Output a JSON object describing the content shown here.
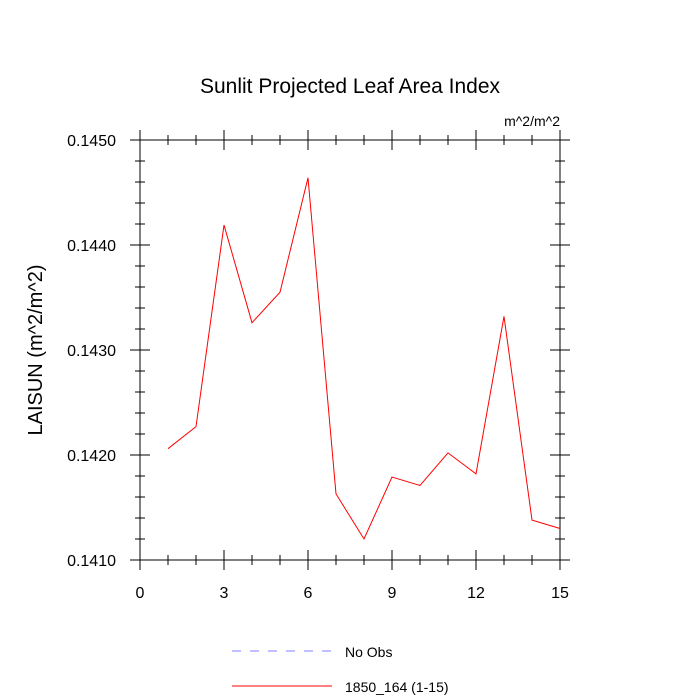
{
  "chart_data": {
    "type": "line",
    "title": "Sunlit Projected Leaf Area Index",
    "units": "m^2/m^2",
    "xlabel": "",
    "ylabel": "LAISUN  (m^2/m^2)",
    "xlim": [
      0,
      15
    ],
    "ylim": [
      0.141,
      0.145
    ],
    "xticks": [
      "0",
      "3",
      "6",
      "9",
      "12",
      "15"
    ],
    "yticks": [
      "0.1410",
      "0.1420",
      "0.1430",
      "0.1440",
      "0.1450"
    ],
    "x": [
      1,
      2,
      3,
      4,
      5,
      6,
      7,
      8,
      9,
      10,
      11,
      12,
      13,
      14,
      15
    ],
    "series": [
      {
        "name": "1850_164 (1-15)",
        "color": "#ff0000",
        "style": "solid",
        "values": [
          0.14206,
          0.14227,
          0.14419,
          0.14326,
          0.14355,
          0.14464,
          0.14163,
          0.1412,
          0.14179,
          0.14171,
          0.14202,
          0.14182,
          0.14332,
          0.14138,
          0.1413
        ]
      }
    ],
    "legend": [
      {
        "label": "No Obs",
        "color": "#8080ff",
        "style": "dashed"
      },
      {
        "label": "1850_164 (1-15)",
        "color": "#ff0000",
        "style": "solid"
      }
    ],
    "legend_position": "bottom",
    "grid": false
  }
}
